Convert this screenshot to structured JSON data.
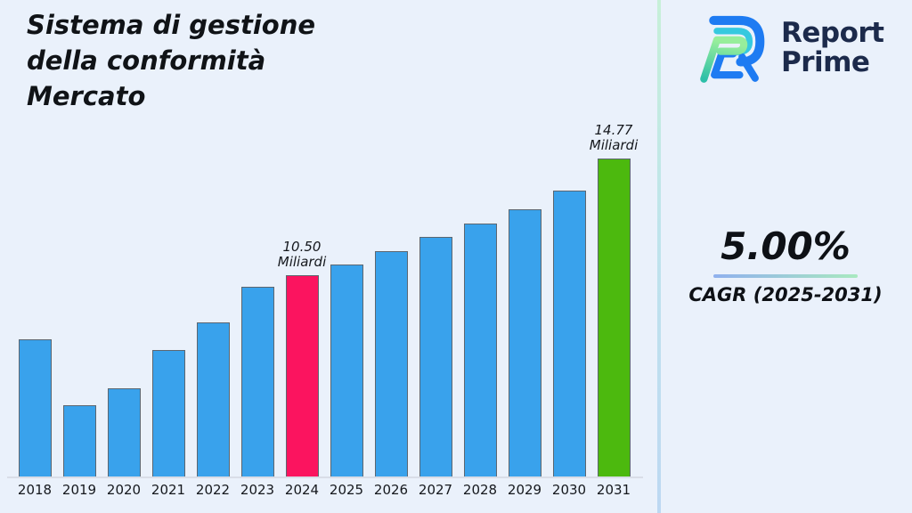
{
  "page": {
    "background": "#EAF1FB"
  },
  "header": {
    "title": "Sistema di gestione\ndella conformità\nMercato"
  },
  "brand": {
    "logo_icon": "report-prime-logo",
    "name_line1": "Report",
    "name_line2": "Prime",
    "text_color": "#1C2A4B"
  },
  "cagr": {
    "value": "5.00%",
    "label": "CAGR (2025-2031)"
  },
  "colors": {
    "bar_default": "#39A2EC",
    "bar_highlight_pink": "#FB145F",
    "bar_highlight_green": "#4CB90E",
    "bar_border": "#5C6670",
    "baseline": "#D9DDE7",
    "separator_top": "#C7F0D8",
    "separator_bottom": "#BDD8F2"
  },
  "chart_data": {
    "type": "bar",
    "title": "Sistema di gestione della conformità Mercato",
    "unit": "Miliardi",
    "xlabel": "",
    "ylabel": "",
    "grid": false,
    "legend": "none",
    "categories": [
      "2018",
      "2019",
      "2020",
      "2021",
      "2022",
      "2023",
      "2024",
      "2025",
      "2026",
      "2027",
      "2028",
      "2029",
      "2030",
      "2031"
    ],
    "values": [
      8.2,
      5.8,
      6.4,
      7.8,
      8.8,
      10.1,
      10.5,
      10.9,
      11.4,
      11.9,
      12.4,
      12.9,
      13.6,
      14.77
    ],
    "ylim": [
      3.2,
      15.5
    ],
    "bar_colors": {
      "default": "#39A2EC",
      "2024": "#FB145F",
      "2031": "#4CB90E"
    },
    "annotations": [
      {
        "category": "2024",
        "line1": "10.50",
        "line2": "Miliardi"
      },
      {
        "category": "2031",
        "line1": "14.77",
        "line2": "Miliardi"
      }
    ]
  }
}
